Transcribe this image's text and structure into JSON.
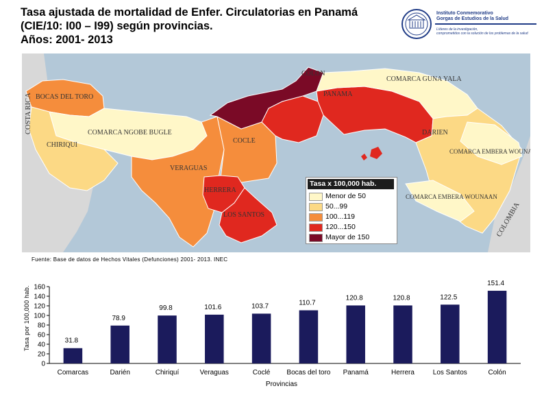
{
  "title": {
    "line1": "Tasa  ajustada de mortalidad de Enfer. Circulatorias en Panamá",
    "line2": "(CIE/10: I00 – I99) según provincias.",
    "line3": "Años: 2001- 2013"
  },
  "logo": {
    "name_line1": "Instituto Conmemorativo",
    "name_line2": "Gorgas de Estudios de la Salud",
    "motto_line1": "Líderes de la investigación,",
    "motto_line2": "comprometidos con la solución de los problemas de la salud"
  },
  "map": {
    "country_labels": [
      "COSTA RICA",
      "COLOMBIA"
    ],
    "region_labels": [
      "COLON",
      "COMARCA GUNA YALA",
      "BOCAS DEL TORO",
      "PANAMA",
      "COMARCA NGOBE BUGLE",
      "CHIRIQUI",
      "COCLE",
      "DARIEN",
      "COMARCA EMBERA WOUNAAN",
      "VERAGUAS",
      "HERRERA",
      "LOS SANTOS",
      "COMARCA EMBERA WOUNAAN"
    ],
    "legend": {
      "title": "Tasa x 100,000 hab.",
      "items": [
        {
          "label": "Menor de 50",
          "color": "#fff7c8"
        },
        {
          "label": "50...99",
          "color": "#fcd985"
        },
        {
          "label": "100...119",
          "color": "#f58d3c"
        },
        {
          "label": "120...150",
          "color": "#e0281f"
        },
        {
          "label": "Mayor de 150",
          "color": "#7a0a26"
        }
      ]
    }
  },
  "source": "Fuente: Base de datos de Hechos Vitales (Defunciones) 2001- 2013. INEC",
  "chart_data": {
    "type": "bar",
    "categories": [
      "Comarcas",
      "Darién",
      "Chiriquí",
      "Veraguas",
      "Coclé",
      "Bocas del toro",
      "Panamá",
      "Herrera",
      "Los Santos",
      "Colón"
    ],
    "values": [
      31.8,
      78.9,
      99.8,
      101.6,
      103.7,
      110.7,
      120.8,
      120.8,
      122.5,
      151.4
    ],
    "value_labels": [
      "31.8",
      "78.9",
      "99.8",
      "101.6",
      "103.7",
      "110.7",
      "120.8",
      "120.8",
      "122.5",
      "151.4"
    ],
    "xlabel": "Provincias",
    "ylabel": "Tasa por 100,000 hab.",
    "ylim": [
      0,
      160
    ],
    "yticks": [
      0,
      20,
      40,
      60,
      80,
      100,
      120,
      140,
      160
    ],
    "bar_color": "#1b1b5c",
    "grid": false,
    "legend": "none"
  }
}
